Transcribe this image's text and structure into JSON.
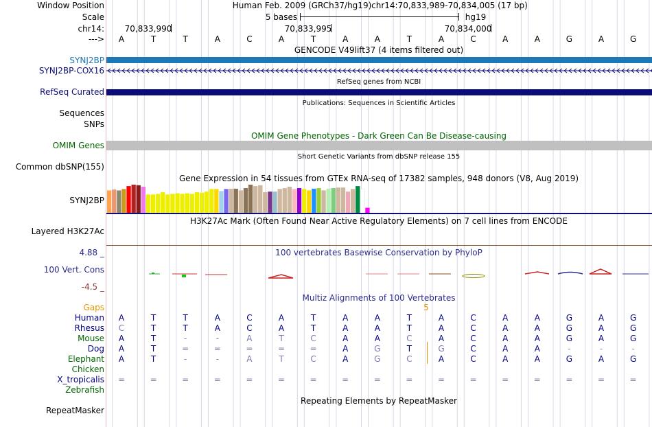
{
  "header": {
    "window_position_label": "Window Position",
    "scale_label": "Scale",
    "chrom_label": "chr14:",
    "strand_label": "--->",
    "assembly": "Human Feb. 2009 (GRCh37/hg19)",
    "position": "chr14:70,833,989-70,834,005 (17 bp)",
    "scale_text": "5 bases",
    "scale_db": "hg19",
    "coords": [
      "70,833,990",
      "70,833,995",
      "70,834,000"
    ]
  },
  "bases": [
    "A",
    "T",
    "T",
    "A",
    "C",
    "A",
    "T",
    "A",
    "A",
    "T",
    "A",
    "C",
    "A",
    "A",
    "G",
    "A",
    "G"
  ],
  "gencode": {
    "title": "GENCODE V49lift37 (4 items filtered out)",
    "track1": "SYNJ2BP",
    "track2": "SYNJ2BP-COX16",
    "color1": "#1f77b4",
    "color2": "#0c0c78"
  },
  "refseq": {
    "title": "RefSeq genes from NCBI",
    "label": "RefSeq Curated",
    "color": "#0c0c78"
  },
  "publications": {
    "title": "Publications: Sequences in Scientific Articles",
    "label1": "Sequences",
    "label2": "SNPs"
  },
  "omim": {
    "title": "OMIM Gene Phenotypes - Dark Green Can Be Disease-causing",
    "label": "OMIM Genes",
    "color": "#006400"
  },
  "dbsnp": {
    "title": "Short Genetic Variants from dbSNP release 155",
    "label": "Common dbSNP(155)"
  },
  "gtex": {
    "title": "Gene Expression in 54 tissues from GTEx RNA-seq of 17382 samples, 948 donors (V8, Aug 2019)",
    "label": "SYNJ2BP",
    "bars": [
      {
        "h": 0.8,
        "c": "#FFA54F"
      },
      {
        "h": 0.83,
        "c": "#EE9572"
      },
      {
        "h": 0.8,
        "c": "#8B8970"
      },
      {
        "h": 0.85,
        "c": "#CD9B1D"
      },
      {
        "h": 0.95,
        "c": "#FF0000"
      },
      {
        "h": 1.0,
        "c": "#B22222"
      },
      {
        "h": 0.98,
        "c": "#8B1A1A"
      },
      {
        "h": 0.93,
        "c": "#EE7AE9"
      },
      {
        "h": 0.66,
        "c": "#EEEE00"
      },
      {
        "h": 0.66,
        "c": "#EEEE00"
      },
      {
        "h": 0.68,
        "c": "#EEEE00"
      },
      {
        "h": 0.74,
        "c": "#EEEE00"
      },
      {
        "h": 0.66,
        "c": "#EEEE00"
      },
      {
        "h": 0.68,
        "c": "#EEEE00"
      },
      {
        "h": 0.7,
        "c": "#EEEE00"
      },
      {
        "h": 0.68,
        "c": "#EEEE00"
      },
      {
        "h": 0.7,
        "c": "#EEEE00"
      },
      {
        "h": 0.68,
        "c": "#EEEE00"
      },
      {
        "h": 0.74,
        "c": "#EEEE00"
      },
      {
        "h": 0.72,
        "c": "#EEEE00"
      },
      {
        "h": 0.76,
        "c": "#EEEE00"
      },
      {
        "h": 0.85,
        "c": "#EEEE00"
      },
      {
        "h": 0.85,
        "c": "#FFD700"
      },
      {
        "h": 0.78,
        "c": "#A4D3EE"
      },
      {
        "h": 0.85,
        "c": "#7A67EE"
      },
      {
        "h": 0.86,
        "c": "#CDB79E"
      },
      {
        "h": 0.86,
        "c": "#8B7355"
      },
      {
        "h": 0.8,
        "c": "#CDB79E"
      },
      {
        "h": 0.88,
        "c": "#8B7355"
      },
      {
        "h": 1.0,
        "c": "#8B7355"
      },
      {
        "h": 0.95,
        "c": "#CDB79E"
      },
      {
        "h": 0.98,
        "c": "#CDB79E"
      },
      {
        "h": 0.74,
        "c": "#CDB79E"
      },
      {
        "h": 0.76,
        "c": "#7A378B"
      },
      {
        "h": 0.76,
        "c": "#9AC0CD"
      },
      {
        "h": 0.85,
        "c": "#CDB79E"
      },
      {
        "h": 0.88,
        "c": "#CDB79E"
      },
      {
        "h": 0.93,
        "c": "#CDB79E"
      },
      {
        "h": 0.85,
        "c": "#FFB6C1"
      },
      {
        "h": 0.88,
        "c": "#9400D3"
      },
      {
        "h": 0.85,
        "c": "#EEEE00"
      },
      {
        "h": 0.8,
        "c": "#FFD700"
      },
      {
        "h": 0.86,
        "c": "#1E90FF"
      },
      {
        "h": 0.88,
        "c": "#9ACD32"
      },
      {
        "h": 0.8,
        "c": "#CDB79E"
      },
      {
        "h": 0.86,
        "c": "#B4EEB4"
      },
      {
        "h": 0.88,
        "c": "#7CCD7C"
      },
      {
        "h": 0.9,
        "c": "#CDB79E"
      },
      {
        "h": 0.9,
        "c": "#CDB79E"
      },
      {
        "h": 0.76,
        "c": "#EEA9B8"
      },
      {
        "h": 0.85,
        "c": "#CDB79E"
      },
      {
        "h": 0.95,
        "c": "#008B45"
      },
      {
        "h": 0.85,
        "c": "#FFFFFF"
      },
      {
        "h": 0.2,
        "c": "#FF00FF"
      }
    ]
  },
  "h3k27ac": {
    "title": "H3K27Ac Mark (Often Found Near Active Regulatory Elements) on 7 cell lines from ENCODE",
    "label": "Layered H3K27Ac"
  },
  "phylop": {
    "title": "100 vertebrates Basewise Conservation by PhyloP",
    "label": "100 Vert. Cons",
    "max": "4.88 _",
    "min": "-4.5 _",
    "label_color": "#2c2c8c",
    "min_color": "#8b3a3a"
  },
  "multiz": {
    "title": "Multiz Alignments of 100 Vertebrates",
    "gaps_label": "Gaps",
    "gap_value": "5",
    "rows": [
      {
        "name": "Human",
        "color": "#000080",
        "bases": [
          "A",
          "T",
          "T",
          "A",
          "C",
          "A",
          "T",
          "A",
          "A",
          "T",
          "A",
          "C",
          "A",
          "A",
          "G",
          "A",
          "G"
        ]
      },
      {
        "name": "Rhesus",
        "color": "#000080",
        "bases": [
          "C",
          "T",
          "T",
          "A",
          "C",
          "A",
          "T",
          "A",
          "A",
          "T",
          "A",
          "C",
          "A",
          "A",
          "G",
          "A",
          "G"
        ]
      },
      {
        "name": "Mouse",
        "color": "#006400",
        "bases": [
          "A",
          "T",
          "-",
          "-",
          "A",
          "T",
          "C",
          "A",
          "A",
          "C",
          "A",
          "C",
          "A",
          "A",
          "G",
          "A",
          "G"
        ]
      },
      {
        "name": "Dog",
        "color": "#000080",
        "bases": [
          "A",
          "T",
          "=",
          "=",
          "=",
          "=",
          "=",
          "A",
          "G",
          "T",
          "G",
          "C",
          "A",
          "A",
          "-",
          "-",
          "-"
        ]
      },
      {
        "name": "Elephant",
        "color": "#006400",
        "bases": [
          "A",
          "T",
          "-",
          "-",
          "A",
          "T",
          "C",
          "A",
          "G",
          "C",
          "A",
          "C",
          "A",
          "A",
          "G",
          "A",
          "G"
        ]
      },
      {
        "name": "Chicken",
        "color": "#006400",
        "bases": []
      },
      {
        "name": "X_tropicalis",
        "color": "#000080",
        "bases": [
          "=",
          "=",
          "=",
          "=",
          "=",
          "=",
          "=",
          "=",
          "=",
          "=",
          "=",
          "=",
          "=",
          "=",
          "=",
          "=",
          "="
        ]
      },
      {
        "name": "Zebrafish",
        "color": "#006400",
        "bases": []
      }
    ]
  },
  "repeatmasker": {
    "title": "Repeating Elements by RepeatMasker",
    "label": "RepeatMasker"
  }
}
